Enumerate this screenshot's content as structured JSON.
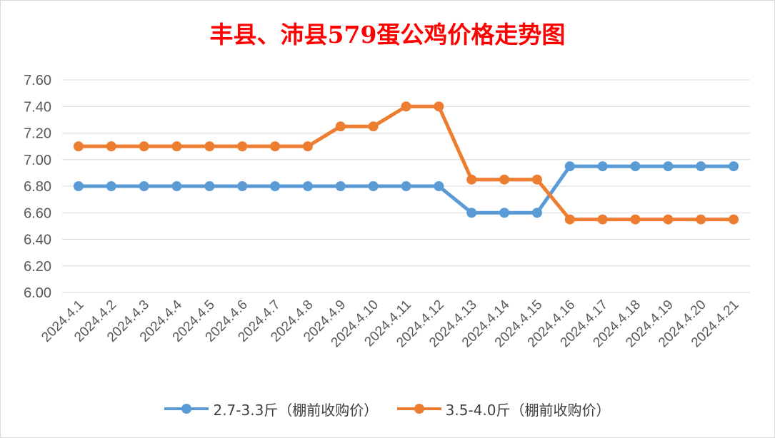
{
  "chart_data": {
    "type": "line",
    "title": "丰县、沛县579蛋公鸡价格走势图",
    "categories": [
      "2024.4.1",
      "2024.4.2",
      "2024.4.3",
      "2024.4.4",
      "2024.4.5",
      "2024.4.6",
      "2024.4.7",
      "2024.4.8",
      "2024.4.9",
      "2024.4.10",
      "2024.4.11",
      "2024.4.12",
      "2024.4.13",
      "2024.4.14",
      "2024.4.15",
      "2024.4.16",
      "2024.4.17",
      "2024.4.18",
      "2024.4.19",
      "2024.4.20",
      "2024.4.21"
    ],
    "series": [
      {
        "name": "2.7-3.3斤（棚前收购价）",
        "color": "#5b9bd5",
        "values": [
          6.8,
          6.8,
          6.8,
          6.8,
          6.8,
          6.8,
          6.8,
          6.8,
          6.8,
          6.8,
          6.8,
          6.8,
          6.6,
          6.6,
          6.6,
          6.95,
          6.95,
          6.95,
          6.95,
          6.95,
          6.95
        ]
      },
      {
        "name": "3.5-4.0斤（棚前收购价）",
        "color": "#ed7d31",
        "values": [
          7.1,
          7.1,
          7.1,
          7.1,
          7.1,
          7.1,
          7.1,
          7.1,
          7.25,
          7.25,
          7.4,
          7.4,
          6.85,
          6.85,
          6.85,
          6.55,
          6.55,
          6.55,
          6.55,
          6.55,
          6.55
        ]
      }
    ],
    "ylim": [
      6.0,
      7.6
    ],
    "yticks": [
      "6.00",
      "6.20",
      "6.40",
      "6.60",
      "6.80",
      "7.00",
      "7.20",
      "7.40",
      "7.60"
    ],
    "grid": true,
    "legend": "bottom"
  }
}
